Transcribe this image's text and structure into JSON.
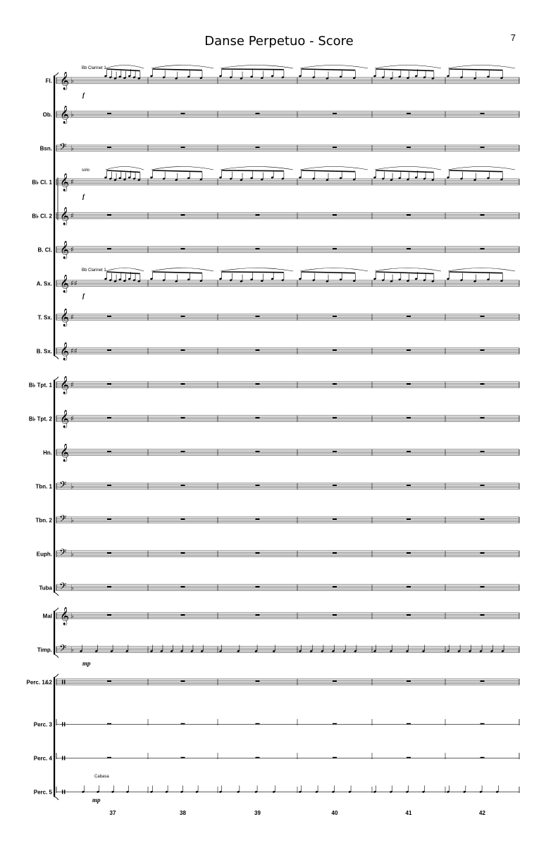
{
  "title": "Danse Perpetuo - Score",
  "page_number": "7",
  "instruments": [
    {
      "label": "Fl.",
      "clef": "treble",
      "key": "♭"
    },
    {
      "label": "Ob.",
      "clef": "treble",
      "key": "♭"
    },
    {
      "label": "Bsn.",
      "clef": "bass",
      "key": "♭"
    },
    {
      "label": "B♭ Cl. 1",
      "clef": "treble",
      "key": "♯"
    },
    {
      "label": "B♭ Cl. 2",
      "clef": "treble",
      "key": "♯"
    },
    {
      "label": "B. Cl.",
      "clef": "treble",
      "key": "♯"
    },
    {
      "label": "A. Sx.",
      "clef": "treble",
      "key": "♯♯"
    },
    {
      "label": "T. Sx.",
      "clef": "treble",
      "key": "♯"
    },
    {
      "label": "B. Sx.",
      "clef": "treble",
      "key": "♯♯"
    },
    {
      "label": "B♭ Tpt. 1",
      "clef": "treble",
      "key": "♯"
    },
    {
      "label": "B♭ Tpt. 2",
      "clef": "treble",
      "key": "♯"
    },
    {
      "label": "Hn.",
      "clef": "treble",
      "key": ""
    },
    {
      "label": "Tbn. 1",
      "clef": "bass",
      "key": "♭"
    },
    {
      "label": "Tbn. 2",
      "clef": "bass",
      "key": "♭"
    },
    {
      "label": "Euph.",
      "clef": "bass",
      "key": "♭"
    },
    {
      "label": "Tuba",
      "clef": "bass",
      "key": "♭"
    },
    {
      "label": "Mal",
      "clef": "treble",
      "key": "♭"
    },
    {
      "label": "Timp.",
      "clef": "bass",
      "key": "♭"
    },
    {
      "label": "Perc. 1&2",
      "clef": "perc",
      "key": ""
    },
    {
      "label": "Perc. 3",
      "clef": "perc1",
      "key": ""
    },
    {
      "label": "Perc. 4",
      "clef": "perc1",
      "key": ""
    },
    {
      "label": "Perc. 5",
      "clef": "perc1",
      "key": ""
    }
  ],
  "measure_numbers": [
    "37",
    "38",
    "39",
    "40",
    "41",
    "42"
  ],
  "annotations": {
    "fl_cue": "Bb Clarinet 1",
    "cl_solo": "solo",
    "asx_cue": "Bb Clarinet 1",
    "perc5_instrument": "Cabasa"
  },
  "dynamics": {
    "fl": "f",
    "cl1": "f",
    "asx": "f",
    "timp": "mp",
    "perc5": "mp"
  }
}
